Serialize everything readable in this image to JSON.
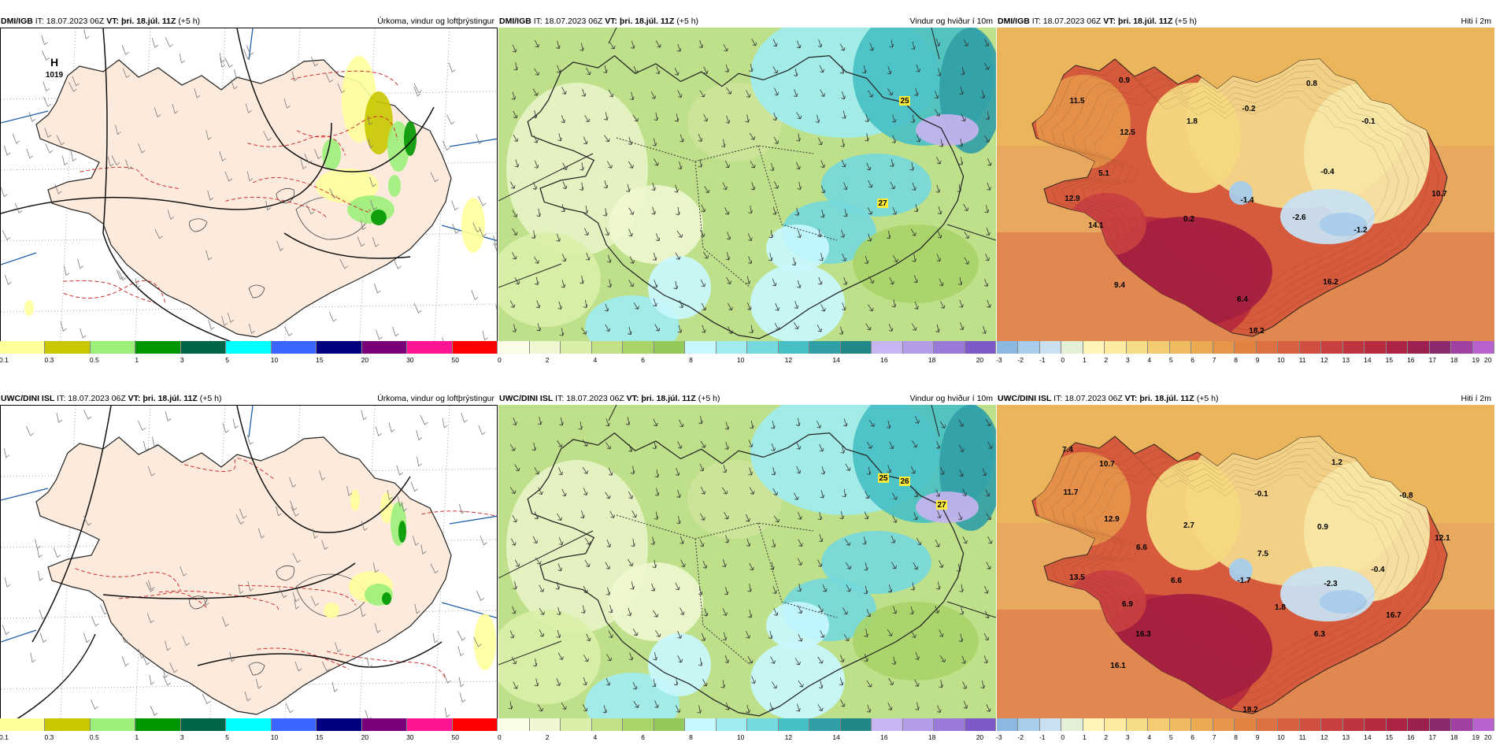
{
  "panels": [
    {
      "model": "DMI/IGB",
      "it_label": "IT:",
      "it": "18.07.2023 06Z",
      "vt_label": "VT:",
      "vt": "þri. 18.júl. 11Z",
      "lead": "(+5 h)",
      "title": "Úrkoma, vindur og loftþrýstingur",
      "type": "precip",
      "labels": [
        {
          "text": "H"
        },
        {
          "text": "1019"
        }
      ],
      "colors": [
        "#ffff9c",
        "#c8c800",
        "#9cf07a",
        "#009600",
        "#006446",
        "#00ffff",
        "#3c64ff",
        "#000080",
        "#780078",
        "#ff1493",
        "#ff0000"
      ],
      "ticks": [
        "0.1",
        "0.3",
        "0.5",
        "1",
        "3",
        "5",
        "10",
        "15",
        "20",
        "30",
        "50"
      ]
    },
    {
      "model": "DMI/IGB",
      "it_label": "IT:",
      "it": "18.07.2023 06Z",
      "vt_label": "VT:",
      "vt": "þri. 18.júl. 11Z",
      "lead": "(+5 h)",
      "title": "Vindur og hviður í 10m",
      "type": "wind",
      "labels": [
        {
          "text": "25"
        },
        {
          "text": "27"
        }
      ],
      "colors": [
        "#fbfce8",
        "#eef7cf",
        "#d9efa8",
        "#c3e286",
        "#a8d468",
        "#94c858",
        "#c8f8ff",
        "#a0ecf0",
        "#74d8dc",
        "#46c0c4",
        "#309ea6",
        "#208888",
        "#c8b4f0",
        "#b49ce6",
        "#9a7ad8",
        "#7e5ac8"
      ],
      "ticks": [
        "0",
        "2",
        "4",
        "6",
        "8",
        "10",
        "12",
        "14",
        "16",
        "18",
        "20"
      ]
    },
    {
      "model": "DMI/IGB",
      "it_label": "IT:",
      "it": "18.07.2023 06Z",
      "vt_label": "VT:",
      "vt": "þri. 18.júl. 11Z",
      "lead": "(+5 h)",
      "title": "Hiti í 2m",
      "type": "temp",
      "labels": [
        {
          "text": "11.5"
        },
        {
          "text": "0.9"
        },
        {
          "text": "-0.2"
        },
        {
          "text": "0.8"
        },
        {
          "text": "12.5"
        },
        {
          "text": "1.8"
        },
        {
          "text": "-0.1"
        },
        {
          "text": "5.1"
        },
        {
          "text": "-0.4"
        },
        {
          "text": "12.9"
        },
        {
          "text": "-1.4"
        },
        {
          "text": "10.7"
        },
        {
          "text": "14.1"
        },
        {
          "text": "0.2"
        },
        {
          "text": "-2.6"
        },
        {
          "text": "-1.2"
        },
        {
          "text": "9.4"
        },
        {
          "text": "16.2"
        },
        {
          "text": "6.4"
        },
        {
          "text": "18.2"
        }
      ],
      "colors": [
        "#8ab8e0",
        "#a8cceb",
        "#c8e0f0",
        "#e4efd8",
        "#fff5b8",
        "#fbeaa0",
        "#f7dc88",
        "#f3cc72",
        "#efbb60",
        "#ebaa52",
        "#e69648",
        "#e28240",
        "#dc7040",
        "#d66040",
        "#cf5040",
        "#c84040",
        "#c03440",
        "#b82a40",
        "#ac2444",
        "#9c2050",
        "#8c2a70",
        "#a040a0",
        "#b860d0"
      ],
      "ticks": [
        "-3",
        "-2",
        "-1",
        "0",
        "1",
        "2",
        "3",
        "4",
        "5",
        "6",
        "7",
        "8",
        "9",
        "10",
        "11",
        "12",
        "13",
        "14",
        "15",
        "16",
        "17",
        "18",
        "19",
        "20"
      ]
    },
    {
      "model": "UWC/DINI ISL",
      "it_label": "IT:",
      "it": "18.07.2023 06Z",
      "vt_label": "VT:",
      "vt": "þri. 18.júl. 11Z",
      "lead": "(+5 h)",
      "title": "Úrkoma, vindur og loftþrýstingur",
      "type": "precip",
      "labels": [],
      "colors": [
        "#ffff9c",
        "#c8c800",
        "#9cf07a",
        "#009600",
        "#006446",
        "#00ffff",
        "#3c64ff",
        "#000080",
        "#780078",
        "#ff1493",
        "#ff0000"
      ],
      "ticks": [
        "0.1",
        "0.3",
        "0.5",
        "1",
        "3",
        "5",
        "10",
        "15",
        "20",
        "30",
        "50"
      ]
    },
    {
      "model": "UWC/DINI ISL",
      "it_label": "IT:",
      "it": "18.07.2023 06Z",
      "vt_label": "VT:",
      "vt": "þri. 18.júl. 11Z",
      "lead": "(+5 h)",
      "title": "Vindur og hviður í 10m",
      "type": "wind",
      "labels": [
        {
          "text": "25"
        },
        {
          "text": "26"
        },
        {
          "text": "27"
        }
      ],
      "colors": [
        "#fbfce8",
        "#eef7cf",
        "#d9efa8",
        "#c3e286",
        "#a8d468",
        "#94c858",
        "#c8f8ff",
        "#a0ecf0",
        "#74d8dc",
        "#46c0c4",
        "#309ea6",
        "#208888",
        "#c8b4f0",
        "#b49ce6",
        "#9a7ad8",
        "#7e5ac8"
      ],
      "ticks": [
        "0",
        "2",
        "4",
        "6",
        "8",
        "10",
        "12",
        "14",
        "16",
        "18",
        "20"
      ]
    },
    {
      "model": "UWC/DINI ISL",
      "it_label": "IT:",
      "it": "18.07.2023 06Z",
      "vt_label": "VT:",
      "vt": "þri. 18.júl. 11Z",
      "lead": "(+5 h)",
      "title": "Hiti í 2m",
      "type": "temp",
      "labels": [
        {
          "text": "7.4"
        },
        {
          "text": "10.7"
        },
        {
          "text": "1.2"
        },
        {
          "text": "11.7"
        },
        {
          "text": "-0.1"
        },
        {
          "text": "-0.8"
        },
        {
          "text": "12.9"
        },
        {
          "text": "2.7"
        },
        {
          "text": "0.9"
        },
        {
          "text": "12.1"
        },
        {
          "text": "6.6"
        },
        {
          "text": "7.5"
        },
        {
          "text": "13.5"
        },
        {
          "text": "6.6"
        },
        {
          "text": "-1.7"
        },
        {
          "text": "-2.3"
        },
        {
          "text": "-0.4"
        },
        {
          "text": "6.9"
        },
        {
          "text": "1.8"
        },
        {
          "text": "16.7"
        },
        {
          "text": "16.3"
        },
        {
          "text": "6.3"
        },
        {
          "text": "16.1"
        },
        {
          "text": "18.2"
        }
      ],
      "colors": [
        "#8ab8e0",
        "#a8cceb",
        "#c8e0f0",
        "#e4efd8",
        "#fff5b8",
        "#fbeaa0",
        "#f7dc88",
        "#f3cc72",
        "#efbb60",
        "#ebaa52",
        "#e69648",
        "#e28240",
        "#dc7040",
        "#d66040",
        "#cf5040",
        "#c84040",
        "#c03440",
        "#b82a40",
        "#ac2444",
        "#9c2050",
        "#8c2a70",
        "#a040a0",
        "#b860d0"
      ],
      "ticks": [
        "-3",
        "-2",
        "-1",
        "0",
        "1",
        "2",
        "3",
        "4",
        "5",
        "6",
        "7",
        "8",
        "9",
        "10",
        "11",
        "12",
        "13",
        "14",
        "15",
        "16",
        "17",
        "18",
        "19",
        "20"
      ]
    }
  ]
}
